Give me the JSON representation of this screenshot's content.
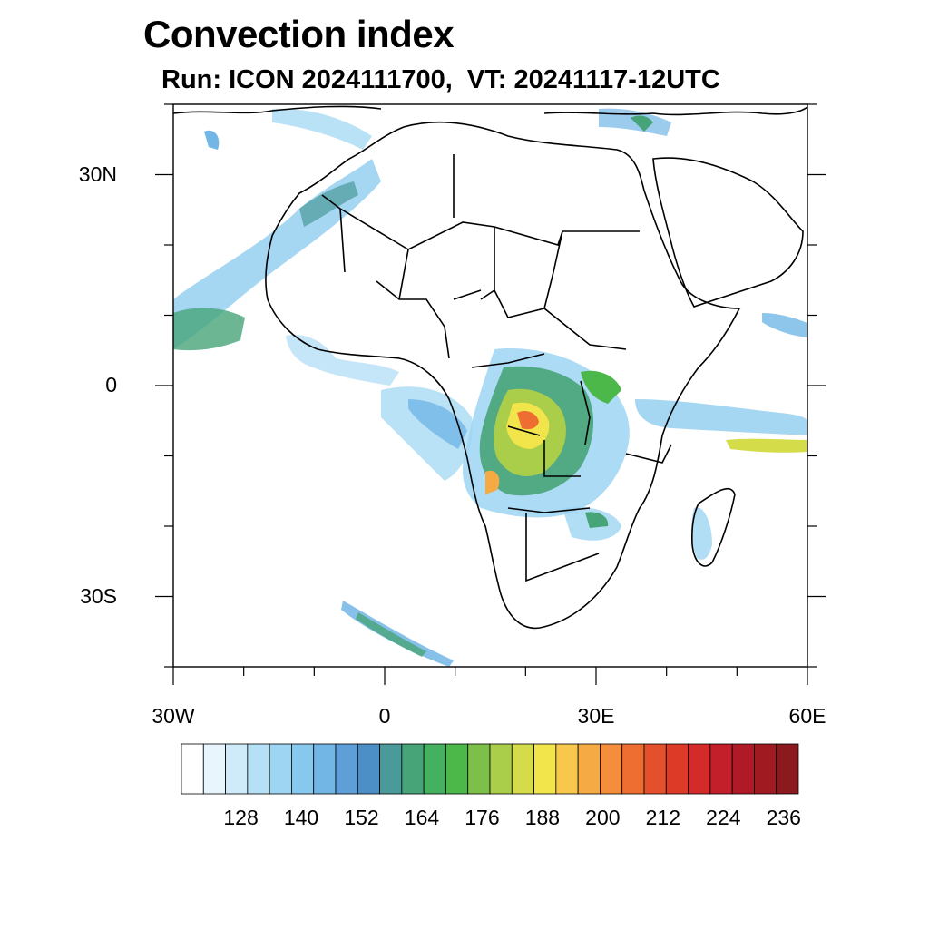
{
  "title": "Convection index",
  "subtitle": "Run: ICON 2024111700,  VT: 20241117-12UTC",
  "map": {
    "lon_range": [
      -30,
      60
    ],
    "lat_range": [
      -40,
      40
    ],
    "lat_ticks": [
      {
        "lat": 30,
        "label": "30N"
      },
      {
        "lat": 0,
        "label": "0"
      },
      {
        "lat": -30,
        "label": "30S"
      }
    ],
    "lon_ticks": [
      {
        "lon": -30,
        "label": "30W"
      },
      {
        "lon": 0,
        "label": "0"
      },
      {
        "lon": 30,
        "label": "30E"
      },
      {
        "lon": 60,
        "label": "60E"
      }
    ]
  },
  "colorbar": {
    "colors": [
      "#ffffff",
      "#e8f5fc",
      "#cfeaf8",
      "#b6e0f6",
      "#9dd5f3",
      "#87c8ee",
      "#72b6e6",
      "#5e9fd8",
      "#4c8fc6",
      "#4a9a9a",
      "#47a478",
      "#45b060",
      "#4db84a",
      "#7cc04a",
      "#aace4a",
      "#d4dc4a",
      "#f2e54c",
      "#f8c84c",
      "#f6aa44",
      "#f48e3c",
      "#ee6e32",
      "#e5502c",
      "#dd3a28",
      "#d42a2a",
      "#c21f2a",
      "#b01a26",
      "#a01a22",
      "#8a1a1e"
    ],
    "labels": [
      "128",
      "140",
      "152",
      "164",
      "176",
      "188",
      "200",
      "212",
      "224",
      "236"
    ]
  }
}
